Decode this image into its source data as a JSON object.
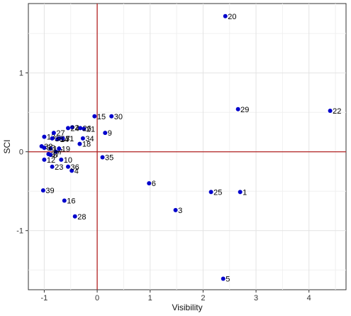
{
  "chart_data": {
    "type": "scatter",
    "title": "",
    "xlabel": "Visibility",
    "ylabel": "SCI",
    "xlim": [
      -1.3,
      4.7
    ],
    "ylim": [
      -1.75,
      1.88
    ],
    "xticks": [
      -1,
      0,
      1,
      2,
      3,
      4
    ],
    "yticks": [
      -1,
      0,
      1
    ],
    "grid": true,
    "reference_lines": {
      "x": 0,
      "y": 0,
      "color": "#b22222"
    },
    "point_color": "#0000cc",
    "points": [
      {
        "label": "1",
        "x": 2.7,
        "y": -0.51
      },
      {
        "label": "2",
        "x": -0.47,
        "y": 0.31
      },
      {
        "label": "3",
        "x": 1.48,
        "y": -0.74
      },
      {
        "label": "4",
        "x": -0.48,
        "y": -0.24
      },
      {
        "label": "5",
        "x": 2.38,
        "y": -1.61
      },
      {
        "label": "6",
        "x": 0.98,
        "y": -0.4
      },
      {
        "label": "7",
        "x": -0.78,
        "y": 0.0
      },
      {
        "label": "8",
        "x": -0.88,
        "y": -0.04
      },
      {
        "label": "9",
        "x": 0.15,
        "y": 0.24
      },
      {
        "label": "10",
        "x": -0.68,
        "y": -0.1
      },
      {
        "label": "11",
        "x": -0.88,
        "y": 0.04
      },
      {
        "label": "12",
        "x": -1.0,
        "y": -0.1
      },
      {
        "label": "13",
        "x": -1.0,
        "y": 0.19
      },
      {
        "label": "14",
        "x": -0.75,
        "y": 0.16
      },
      {
        "label": "15",
        "x": -0.05,
        "y": 0.45
      },
      {
        "label": "16",
        "x": -0.62,
        "y": -0.62
      },
      {
        "label": "17",
        "x": -0.72,
        "y": 0.17
      },
      {
        "label": "18",
        "x": -0.33,
        "y": 0.1
      },
      {
        "label": "19",
        "x": -0.72,
        "y": 0.04
      },
      {
        "label": "20",
        "x": 2.42,
        "y": 1.72
      },
      {
        "label": "21",
        "x": -0.25,
        "y": 0.29
      },
      {
        "label": "22",
        "x": 4.4,
        "y": 0.52
      },
      {
        "label": "23",
        "x": -0.85,
        "y": -0.19
      },
      {
        "label": "24",
        "x": -0.55,
        "y": 0.3
      },
      {
        "label": "25",
        "x": 2.15,
        "y": -0.51
      },
      {
        "label": "26",
        "x": -0.32,
        "y": 0.3
      },
      {
        "label": "27",
        "x": -0.82,
        "y": 0.24
      },
      {
        "label": "28",
        "x": -0.42,
        "y": -0.82
      },
      {
        "label": "29",
        "x": 2.66,
        "y": 0.54
      },
      {
        "label": "30",
        "x": 0.27,
        "y": 0.45
      },
      {
        "label": "31",
        "x": -0.65,
        "y": 0.17
      },
      {
        "label": "32",
        "x": -1.05,
        "y": 0.07
      },
      {
        "label": "33",
        "x": -1.0,
        "y": 0.05
      },
      {
        "label": "34",
        "x": -0.27,
        "y": 0.17
      },
      {
        "label": "35",
        "x": 0.1,
        "y": -0.07
      },
      {
        "label": "36",
        "x": -0.55,
        "y": -0.19
      },
      {
        "label": "37",
        "x": -0.92,
        "y": -0.03
      },
      {
        "label": "38",
        "x": -0.85,
        "y": 0.17
      },
      {
        "label": "39",
        "x": -1.02,
        "y": -0.49
      }
    ]
  }
}
